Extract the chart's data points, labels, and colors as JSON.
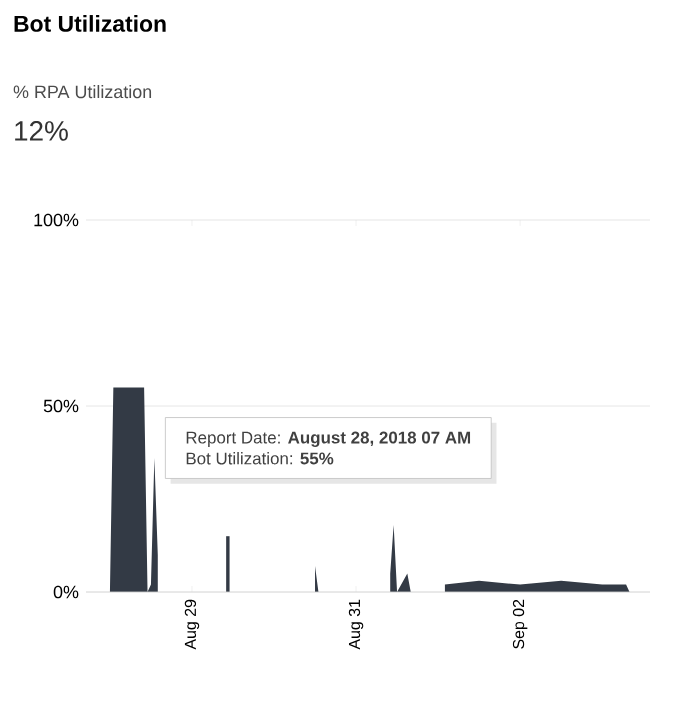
{
  "chart_data": {
    "type": "area",
    "title": "Bot Utilization",
    "subtitle": "% RPA Utilization",
    "annotations": [
      "12%",
      "Report Date: **August 28, 2018 07 AM**",
      "Bot Utilization: **55%**"
    ],
    "x": [
      "2018-08-28T00:00",
      "2018-08-28T01:00",
      "2018-08-28T07:00",
      "2018-08-28T10:00",
      "2018-08-28T11:00",
      "2018-08-28T12:00",
      "2018-08-28T13:00",
      "2018-08-28T14:00",
      "2018-08-28T15:00",
      "2018-08-28T16:00",
      "2018-08-29T01:00",
      "2018-08-29T09:00",
      "2018-08-29T10:00",
      "2018-08-29T11:00",
      "2018-08-29T12:00",
      "2018-08-30T10:00",
      "2018-08-30T12:00",
      "2018-08-30T13:00",
      "2018-08-30T19:00",
      "2018-08-30T20:00",
      "2018-08-31T09:00",
      "2018-08-31T10:00",
      "2018-08-31T11:00",
      "2018-08-31T12:00",
      "2018-08-31T15:00",
      "2018-08-31T16:00",
      "2018-08-31T21:00",
      "2018-08-31T22:00",
      "2018-09-01T01:00",
      "2018-09-01T02:00",
      "2018-09-01T12:00",
      "2018-09-02T00:00",
      "2018-09-02T12:00",
      "2018-09-03T00:00",
      "2018-09-03T07:00",
      "2018-09-03T08:00"
    ],
    "values": [
      0,
      55,
      55,
      55,
      0,
      2,
      36,
      10,
      null,
      null,
      null,
      null,
      15,
      15,
      null,
      null,
      7,
      0,
      0,
      null,
      null,
      5,
      18,
      0,
      5,
      0,
      0,
      null,
      null,
      2,
      3,
      2,
      3,
      2,
      2,
      0
    ],
    "color": "#333a45",
    "xlim": [
      "2018-08-27T17:00",
      "2018-09-03T14:00"
    ],
    "xticks": [
      {
        "value": "2018-08-29",
        "label": "Aug 29"
      },
      {
        "value": "2018-08-31",
        "label": "Aug 31"
      },
      {
        "value": "2018-09-02",
        "label": "Sep 02"
      }
    ],
    "ylim": [
      0,
      100
    ],
    "yticks": [
      {
        "value": 0,
        "label": "0%"
      },
      {
        "value": 50,
        "label": "50%"
      },
      {
        "value": 100,
        "label": "100%"
      }
    ],
    "grid": "y"
  }
}
